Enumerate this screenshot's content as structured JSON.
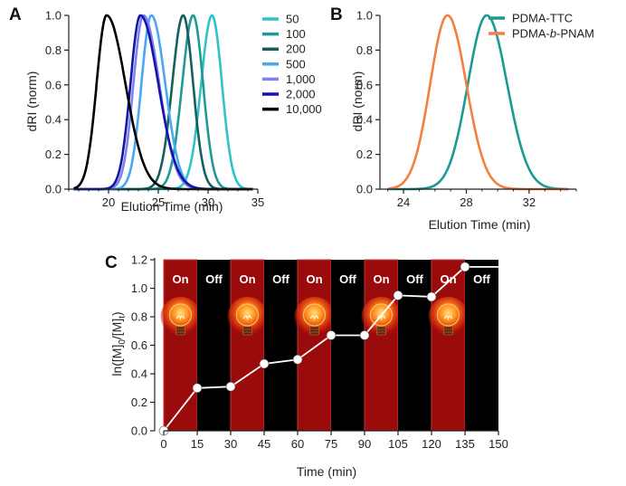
{
  "chart_data": [
    {
      "panel": "A",
      "type": "line",
      "xlabel": "Elution Time (min)",
      "ylabel": "dRI (norm)",
      "xlim": [
        16,
        35
      ],
      "ylim": [
        0,
        1.0
      ],
      "xticks": [
        "20",
        "25",
        "30",
        "35"
      ],
      "yticks": [
        "0.0",
        "0.2",
        "0.4",
        "0.6",
        "0.8",
        "1.0"
      ],
      "legend_position": "top-right",
      "series": [
        {
          "name": "50",
          "color": "#2ec4c6",
          "peak": 30.4,
          "width_left": 1.1,
          "width_right": 1.0
        },
        {
          "name": "100",
          "color": "#1f9a96",
          "peak": 28.5,
          "width_left": 1.1,
          "width_right": 1.0
        },
        {
          "name": "200",
          "color": "#155f5c",
          "peak": 27.5,
          "width_left": 1.1,
          "width_right": 1.0
        },
        {
          "name": "500",
          "color": "#4aa8ee",
          "peak": 24.3,
          "width_left": 1.0,
          "width_right": 1.4
        },
        {
          "name": "1,000",
          "color": "#7b82ee",
          "peak": 23.5,
          "width_left": 1.0,
          "width_right": 1.6
        },
        {
          "name": "2,000",
          "color": "#1414a8",
          "peak": 23.2,
          "width_left": 1.0,
          "width_right": 1.8
        },
        {
          "name": "10,000",
          "color": "#000000",
          "peak": 19.8,
          "width_left": 1.0,
          "width_right": 1.9
        }
      ]
    },
    {
      "panel": "B",
      "type": "line",
      "xlabel": "Elution Time (min)",
      "ylabel": "dRI (norm)",
      "xlim": [
        22.5,
        35
      ],
      "ylim": [
        0,
        1.0
      ],
      "xticks": [
        "24",
        "28",
        "32"
      ],
      "yticks": [
        "0.0",
        "0.2",
        "0.4",
        "0.6",
        "0.8",
        "1.0"
      ],
      "legend_position": "top-right",
      "series": [
        {
          "name": "PDMA-TTC",
          "color": "#1a9a94",
          "peak": 29.3,
          "width_left": 1.2,
          "width_right": 1.3
        },
        {
          "name_parts": [
            "PDMA-",
            "b",
            "-PNAM"
          ],
          "color": "#f47f3f",
          "peak": 26.8,
          "width_left": 1.1,
          "width_right": 1.2
        }
      ]
    },
    {
      "panel": "C",
      "type": "line",
      "xlabel": "Time (min)",
      "ylabel": {
        "base": "ln([M]",
        "sub1": "0",
        "mid": "/[M]",
        "sub2": "t",
        "end": ")"
      },
      "xlim": [
        0,
        150
      ],
      "ylim": [
        0,
        1.2
      ],
      "xticks": [
        "0",
        "15",
        "30",
        "45",
        "60",
        "75",
        "90",
        "105",
        "120",
        "135",
        "150"
      ],
      "yticks": [
        "0.0",
        "0.2",
        "0.4",
        "0.6",
        "0.8",
        "1.0",
        "1.2"
      ],
      "light_periods": [
        {
          "start": 0,
          "end": 15,
          "label": "On"
        },
        {
          "start": 15,
          "end": 30,
          "label": "Off"
        },
        {
          "start": 30,
          "end": 45,
          "label": "On"
        },
        {
          "start": 45,
          "end": 60,
          "label": "Off"
        },
        {
          "start": 60,
          "end": 75,
          "label": "On"
        },
        {
          "start": 75,
          "end": 90,
          "label": "Off"
        },
        {
          "start": 90,
          "end": 105,
          "label": "On"
        },
        {
          "start": 105,
          "end": 120,
          "label": "Off"
        },
        {
          "start": 120,
          "end": 135,
          "label": "On"
        },
        {
          "start": 135,
          "end": 150,
          "label": "Off"
        }
      ],
      "on_color": "#9a0b0b",
      "off_color": "#000000",
      "points": [
        {
          "x": 0,
          "y": 0.0
        },
        {
          "x": 15,
          "y": 0.3
        },
        {
          "x": 30,
          "y": 0.31
        },
        {
          "x": 45,
          "y": 0.47
        },
        {
          "x": 60,
          "y": 0.5
        },
        {
          "x": 75,
          "y": 0.67
        },
        {
          "x": 90,
          "y": 0.67
        },
        {
          "x": 105,
          "y": 0.95
        },
        {
          "x": 120,
          "y": 0.94
        },
        {
          "x": 135,
          "y": 1.15
        },
        {
          "x": 150,
          "y": 1.15
        }
      ],
      "icon": "light-bulb-icon"
    }
  ]
}
